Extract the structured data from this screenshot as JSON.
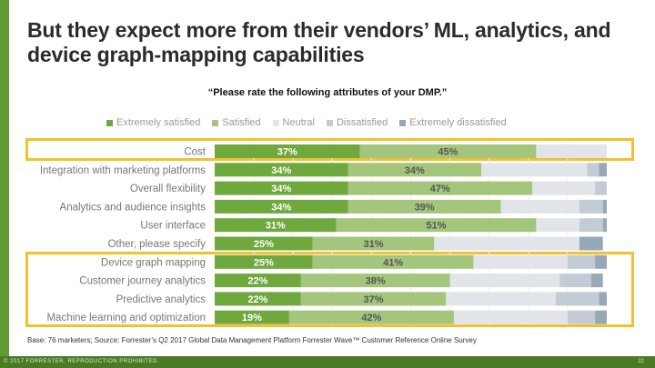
{
  "title": "But they expect more from their vendors’ ML, analytics, and device graph-mapping capabilities",
  "question": "“Please rate the following attributes of your DMP.”",
  "source": "Base: 76 marketers; Source: Forrester’s Q2 2017 Global Data Management Platform Forrester Wave™ Customer Reference Online Survey",
  "footer": {
    "copyright": "© 2017 FORRESTER. REPRODUCTION PROHIBITED.",
    "page": "22"
  },
  "colors": {
    "highlight": "#f2c12e",
    "brand": "#4a7a22"
  },
  "chart_data": {
    "type": "bar",
    "orientation": "horizontal-stacked-100",
    "legend_position": "top",
    "categories": [
      "Cost",
      "Integration with marketing platforms",
      "Overall flexibility",
      "Analytics and audience insights",
      "User interface",
      "Other, please specify",
      "Device graph mapping",
      "Customer journey analytics",
      "Predictive analytics",
      "Machine learning and optimization"
    ],
    "series": [
      {
        "name": "Extremely satisfied",
        "color": "#6fa83c",
        "values": [
          37,
          34,
          34,
          34,
          31,
          25,
          25,
          22,
          22,
          19
        ]
      },
      {
        "name": "Satisfied",
        "color": "#a3c57c",
        "values": [
          45,
          34,
          47,
          39,
          51,
          31,
          41,
          38,
          37,
          42
        ]
      },
      {
        "name": "Neutral",
        "color": "#e1e5ea",
        "values": [
          18,
          27,
          16,
          20,
          11,
          37,
          24,
          28,
          28,
          29
        ]
      },
      {
        "name": "Dissatisfied",
        "color": "#c3ccd5",
        "values": [
          0,
          3,
          3,
          6,
          6,
          0,
          7,
          8,
          11,
          7
        ]
      },
      {
        "name": "Extremely dissatisfied",
        "color": "#97a8b6",
        "values": [
          0,
          2,
          0,
          1,
          1,
          6,
          3,
          3,
          2,
          3
        ]
      }
    ],
    "labeled_series": [
      0,
      1
    ],
    "highlighted_groups": [
      [
        "Cost"
      ],
      [
        "Device graph mapping",
        "Customer journey analytics",
        "Predictive analytics",
        "Machine learning and optimization"
      ]
    ]
  }
}
